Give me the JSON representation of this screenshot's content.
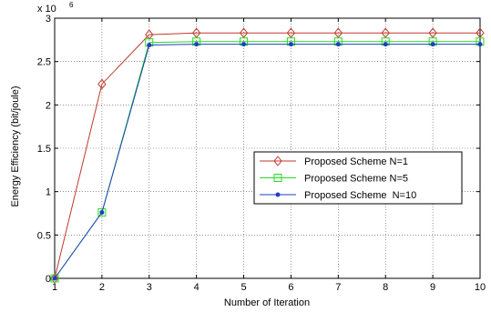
{
  "chart_data": {
    "type": "line",
    "xlabel": "Number of Iteration",
    "ylabel": "Energy Efficiency (bit/joule)",
    "y_multiplier": {
      "base": "x 10",
      "exponent": "6"
    },
    "x": [
      1,
      2,
      3,
      4,
      5,
      6,
      7,
      8,
      9,
      10
    ],
    "xlim": [
      1,
      10
    ],
    "ylim": [
      0,
      3
    ],
    "xticks": [
      "1",
      "2",
      "3",
      "4",
      "5",
      "6",
      "7",
      "8",
      "9",
      "10"
    ],
    "yticks": [
      "0",
      "0.5",
      "1",
      "1.5",
      "2",
      "2.5",
      "3"
    ],
    "ytick_values": [
      0,
      0.5,
      1,
      1.5,
      2,
      2.5,
      3
    ],
    "grid": true,
    "legend_position": "center-right",
    "series": [
      {
        "name": "Proposed Scheme N=1",
        "color": "#c0392b",
        "marker": "diamond",
        "values": [
          0,
          2.24,
          2.81,
          2.83,
          2.83,
          2.83,
          2.83,
          2.83,
          2.83,
          2.83
        ]
      },
      {
        "name": "Proposed Scheme N=5",
        "color": "#22dd22",
        "marker": "square",
        "values": [
          0,
          0.76,
          2.72,
          2.73,
          2.73,
          2.73,
          2.73,
          2.73,
          2.73,
          2.73
        ]
      },
      {
        "name": "Proposed Scheme  N=10",
        "color": "#1f3fbf",
        "marker": "dot",
        "values": [
          0,
          0.76,
          2.69,
          2.7,
          2.7,
          2.7,
          2.7,
          2.7,
          2.7,
          2.7
        ]
      }
    ]
  }
}
